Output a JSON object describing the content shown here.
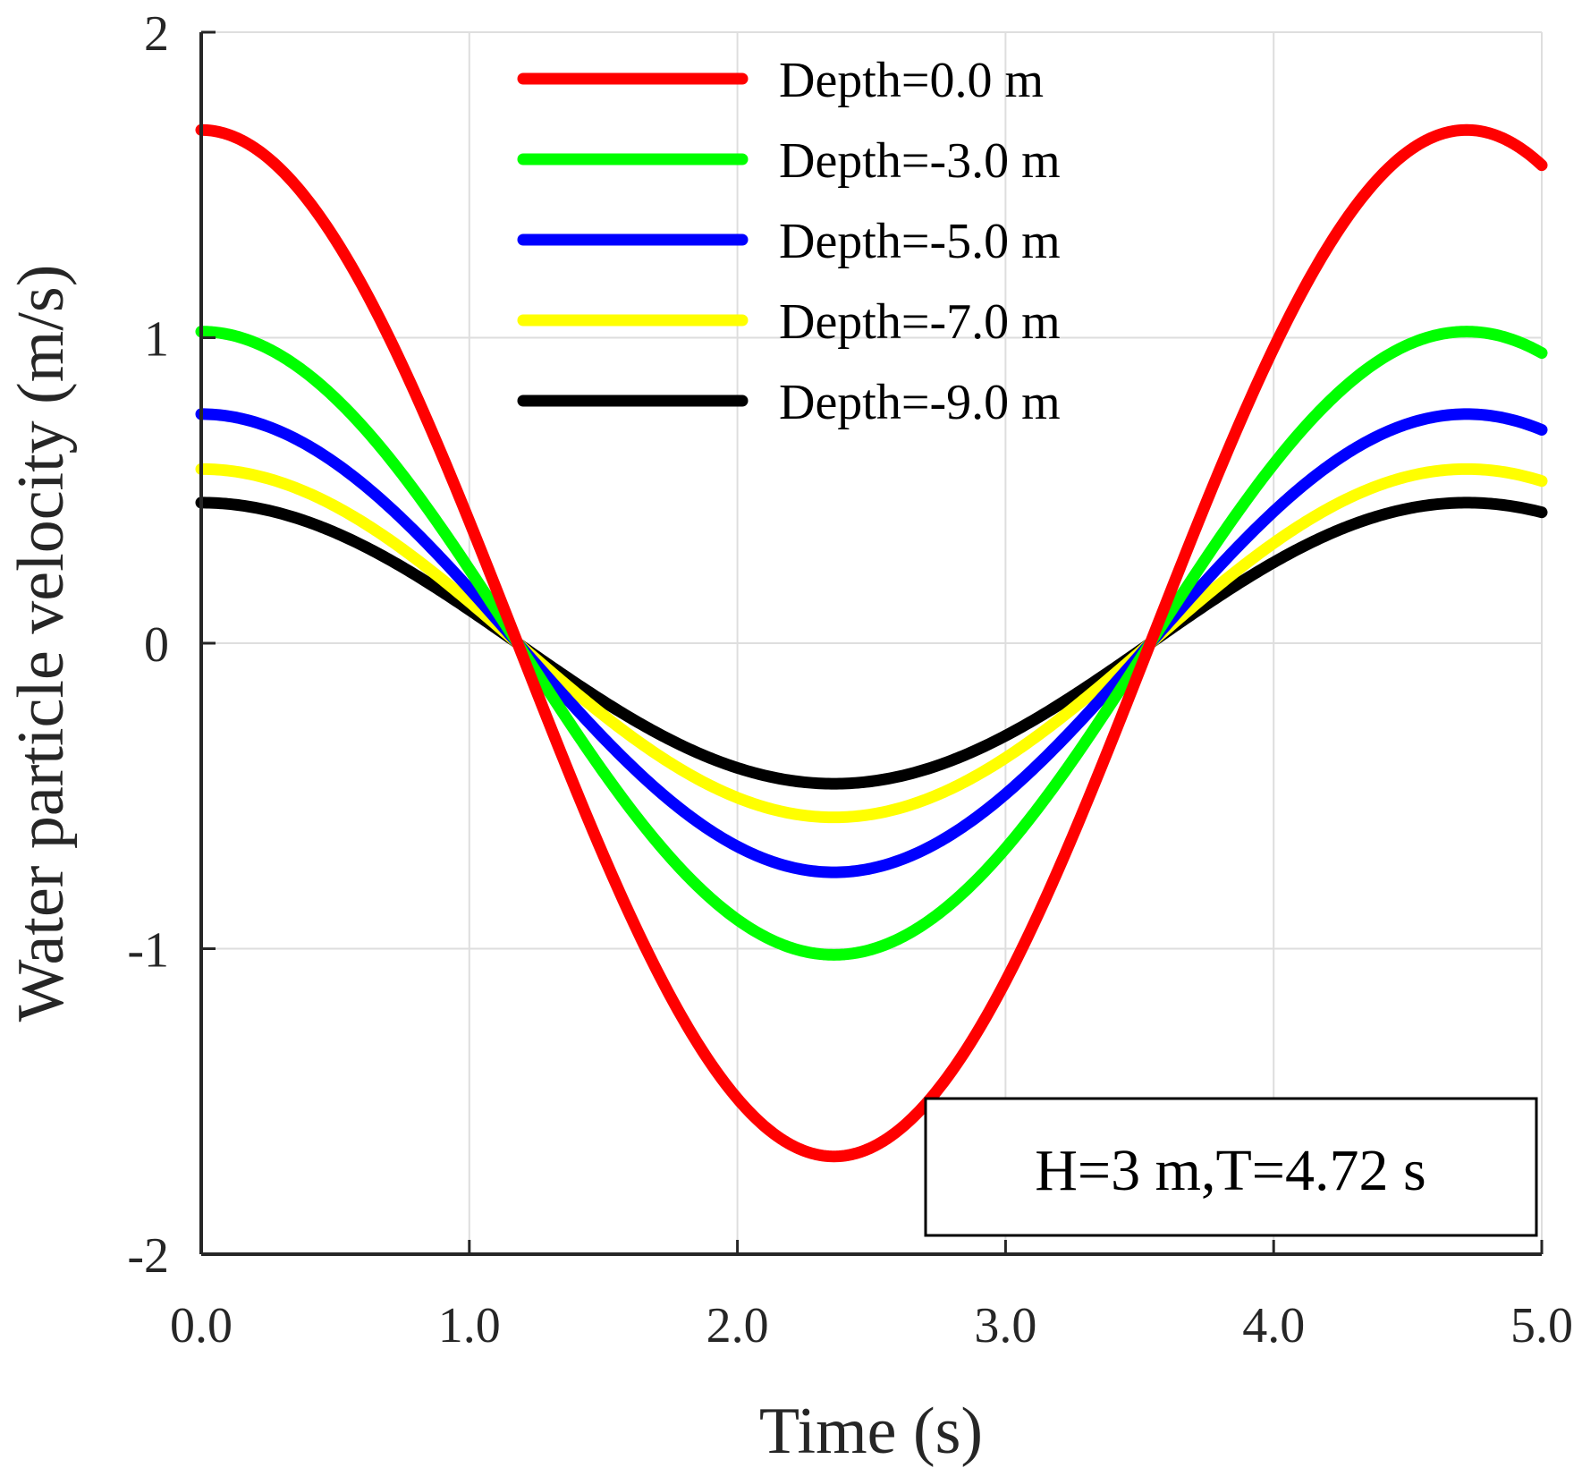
{
  "chart_data": {
    "type": "line",
    "title": "",
    "xlabel": "Time (s)",
    "ylabel": "Water particle velocity (m/s)",
    "xlim": [
      0,
      5
    ],
    "ylim": [
      -2,
      2
    ],
    "xticks": [
      0,
      1,
      2,
      3,
      4,
      5
    ],
    "xtick_labels": [
      "0.0",
      "1.0",
      "2.0",
      "3.0",
      "4.0",
      "5.0"
    ],
    "yticks": [
      2,
      1,
      0,
      -1,
      -2
    ],
    "ytick_labels": [
      "2",
      "1",
      "0",
      "-1",
      "-2"
    ],
    "grid": true,
    "legend_position": "top-center",
    "annotation": "H=3 m,T=4.72 s",
    "period": 4.72,
    "series": [
      {
        "name": "Depth=0.0 m",
        "color": "#ff0000",
        "amplitude": 1.68
      },
      {
        "name": "Depth=-3.0 m",
        "color": "#00ff00",
        "amplitude": 1.02
      },
      {
        "name": "Depth=-5.0 m",
        "color": "#0000ff",
        "amplitude": 0.75
      },
      {
        "name": "Depth=-7.0 m",
        "color": "#ffff00",
        "amplitude": 0.57
      },
      {
        "name": "Depth=-9.0 m",
        "color": "#000000",
        "amplitude": 0.46
      }
    ]
  }
}
